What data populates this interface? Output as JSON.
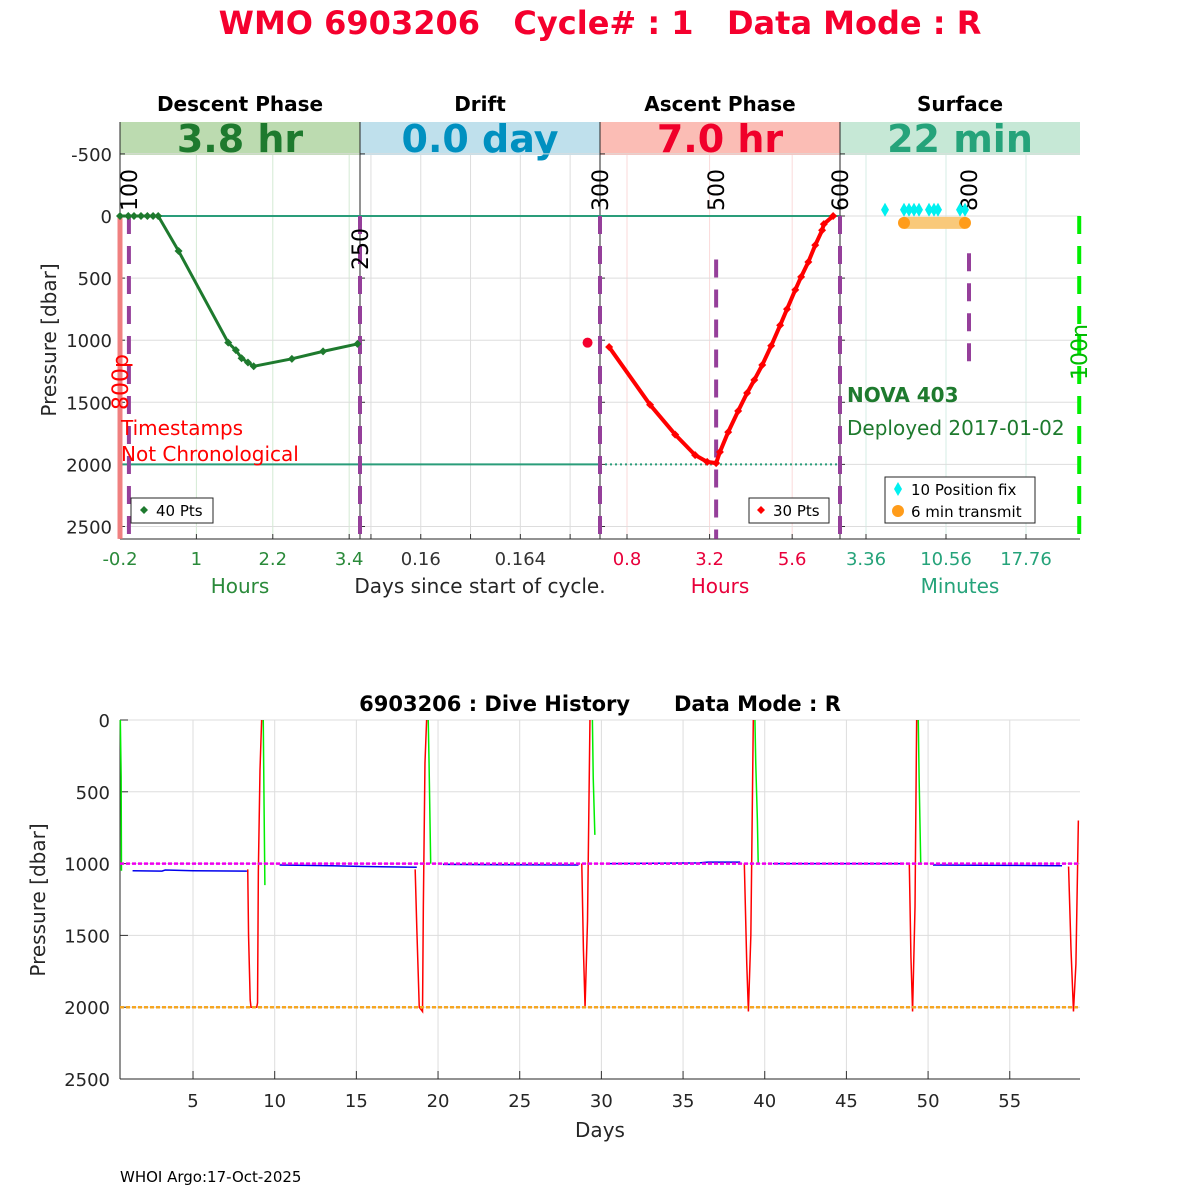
{
  "header": {
    "title": "WMO 6903206   Cycle# : 1   Data Mode : R",
    "title_color": "#f5002e"
  },
  "footer": {
    "text": "WHOI Argo:17-Oct-2025"
  },
  "chart_data": [
    {
      "type": "line",
      "ylabel": "Pressure [dbar]",
      "ylim": [
        -760,
        2600
      ],
      "y_reversed": true,
      "yticks": [
        -500,
        0,
        500,
        1000,
        1500,
        2000,
        2500
      ],
      "ytick_labels": [
        "-500",
        "0",
        "500",
        "1000",
        "1500",
        "2000",
        "2500"
      ],
      "center_xlabel": "Days since start of cycle.",
      "grid": true,
      "phases": [
        {
          "title": "Descent Phase",
          "duration": "3.8 hr",
          "xlabel": "Hours",
          "band_color": "#bcdbb0",
          "text_color": "#1e7a2e",
          "tick_color": "#2a8a3a",
          "grid_color": "#d4ead4",
          "xlim": [
            -0.2,
            3.57
          ],
          "xticks": [
            -0.2,
            1,
            2.2,
            3.4
          ],
          "xtick_labels": [
            "-0.2",
            "1",
            "2.2",
            "3.4"
          ],
          "legend": "40 Pts",
          "series_color": "#1e7a2e",
          "points": [
            [
              -0.2,
              0
            ],
            [
              -0.07,
              0
            ],
            [
              0.02,
              0
            ],
            [
              0.13,
              0
            ],
            [
              0.23,
              0
            ],
            [
              0.32,
              0
            ],
            [
              0.4,
              0
            ],
            [
              0.72,
              282
            ],
            [
              1.5,
              1020
            ],
            [
              1.62,
              1080
            ],
            [
              1.71,
              1145
            ],
            [
              1.81,
              1180
            ],
            [
              1.9,
              1210
            ],
            [
              2.5,
              1150
            ],
            [
              2.99,
              1090
            ],
            [
              3.53,
              1030
            ]
          ]
        },
        {
          "title": "Drift",
          "duration": "0.0 day",
          "xlabel": "",
          "band_color": "#bfe0ec",
          "text_color": "#0090c0",
          "tick_color": "#333333",
          "grid_color": "#dddddd",
          "xlim": [
            0.15756,
            0.1672
          ],
          "xticks": [
            0.158,
            0.16,
            0.162,
            0.164,
            0.166
          ],
          "xtick_labels": [
            "",
            "0.16",
            "",
            "0.164",
            ""
          ],
          "series_color": "#f5002e",
          "points": [
            [
              0.1667,
              1020
            ]
          ]
        },
        {
          "title": "Ascent Phase",
          "duration": "7.0 hr",
          "xlabel": "Hours",
          "band_color": "#fbbdb5",
          "text_color": "#f0002a",
          "tick_color": "#e8003a",
          "grid_color": "#fbdada",
          "xlim": [
            0.015,
            6.99
          ],
          "xticks": [
            0.8,
            3.2,
            5.6
          ],
          "xtick_labels": [
            "0.8",
            "3.2",
            "5.6"
          ],
          "legend": "30 Pts",
          "series_color": "#ff0000",
          "points": [
            [
              0.28,
              1055
            ],
            [
              1.47,
              1520
            ],
            [
              2.2,
              1760
            ],
            [
              2.78,
              1925
            ],
            [
              3.13,
              1980
            ],
            [
              3.39,
              1990
            ],
            [
              3.5,
              1900
            ],
            [
              3.74,
              1740
            ],
            [
              4.03,
              1570
            ],
            [
              4.29,
              1425
            ],
            [
              4.5,
              1320
            ],
            [
              4.73,
              1200
            ],
            [
              4.99,
              1045
            ],
            [
              5.25,
              880
            ],
            [
              5.45,
              750
            ],
            [
              5.69,
              595
            ],
            [
              5.86,
              490
            ],
            [
              6.07,
              370
            ],
            [
              6.27,
              235
            ],
            [
              6.47,
              115
            ],
            [
              6.52,
              65
            ],
            [
              6.79,
              0
            ]
          ]
        },
        {
          "title": "Surface",
          "duration": "22 min",
          "xlabel": "Minutes",
          "band_color": "#c6e8d6",
          "text_color": "#25a37a",
          "tick_color": "#25a37a",
          "grid_color": "#d6ece4",
          "xlim": [
            1.02,
            22.62
          ],
          "xticks": [
            3.36,
            10.56,
            17.76
          ],
          "xtick_labels": [
            "3.36",
            "10.56",
            "17.76"
          ],
          "legend_items": [
            {
              "label": "10 Position fix",
              "color": "#00f0f0"
            },
            {
              "label": "6 min transmit",
              "color": "#ff9c1a"
            }
          ],
          "position_fixes": [
            5.07,
            6.78,
            7.23,
            7.68,
            8.13,
            9.03,
            9.48,
            9.84,
            11.82,
            12.27
          ],
          "position_fix_pressure": -50,
          "transmit": [
            6.78,
            12.27
          ],
          "transmit_pressure": 55
        }
      ],
      "reference_lines": [
        {
          "pressure": 0,
          "color": "#2a9d7a",
          "style": "solid"
        },
        {
          "pressure": 2000,
          "color": "#2a9d7a",
          "style": "solid-then-dotted"
        }
      ],
      "markers": [
        {
          "label": "100",
          "phase": 0,
          "x": -0.06,
          "from": 0,
          "to": 2600,
          "color": "#953f9a",
          "label_color": "#000000"
        },
        {
          "label": "250",
          "phase": 0,
          "x": 3.57,
          "from": 0,
          "to": 2600,
          "color": "#953f9a",
          "label_color": "#000000"
        },
        {
          "label": "300",
          "phase": 2,
          "x": 0.015,
          "from": 0,
          "to": 2600,
          "color": "#953f9a",
          "label_color": "#000000"
        },
        {
          "label": "500",
          "phase": 2,
          "x": 3.39,
          "from": 350,
          "to": 2600,
          "color": "#953f9a",
          "label_color": "#000000"
        },
        {
          "label": "600",
          "phase": 2,
          "x": 6.99,
          "from": 0,
          "to": 2600,
          "color": "#953f9a",
          "label_color": "#000000"
        },
        {
          "label": "800",
          "phase": 3,
          "x": 12.63,
          "from": 300,
          "to": 1200,
          "color": "#953f9a",
          "label_color": "#000000"
        },
        {
          "label": "800p",
          "phase": 0,
          "x": -0.2,
          "from": 0,
          "to": 2600,
          "color": "#f08080",
          "label_color": "#ff0000"
        },
        {
          "label": "100n",
          "phase": 3,
          "x": 22.55,
          "from": 0,
          "to": 2600,
          "color": "#00ee00",
          "label_color": "#00bb00"
        }
      ],
      "annotations": {
        "warning_line1": "Timestamps",
        "warning_line2": "Not Chronological",
        "float_name": "NOVA 403",
        "deployed": "Deployed 2017-01-02"
      }
    },
    {
      "type": "line",
      "title": "6903206 : Dive History      Data Mode : R",
      "xlabel": "Days",
      "ylabel": "Pressure [dbar]",
      "xlim": [
        0.53,
        59.3
      ],
      "ylim": [
        0,
        2500
      ],
      "y_reversed": true,
      "xticks": [
        5,
        10,
        15,
        20,
        25,
        30,
        35,
        40,
        45,
        50,
        55
      ],
      "yticks": [
        0,
        500,
        1000,
        1500,
        2000,
        2500
      ],
      "grid": true,
      "reference_lines": [
        {
          "pressure": 1000,
          "color": "#ee00ee",
          "style": "dashed"
        },
        {
          "pressure": 2000,
          "color": "#f5a623",
          "style": "dashed"
        }
      ],
      "series": [
        {
          "name": "descent",
          "color": "#00ee00",
          "segments": [
            [
              [
                0.55,
                0
              ],
              [
                0.6,
                400
              ],
              [
                0.62,
                1050
              ]
            ],
            [
              [
                9.3,
                0
              ],
              [
                9.35,
                600
              ],
              [
                9.4,
                1150
              ]
            ],
            [
              [
                19.4,
                0
              ],
              [
                19.45,
                300
              ],
              [
                19.55,
                1000
              ]
            ],
            [
              [
                29.45,
                0
              ],
              [
                29.5,
                400
              ],
              [
                29.6,
                800
              ]
            ],
            [
              [
                39.4,
                0
              ],
              [
                39.45,
                300
              ],
              [
                39.55,
                700
              ],
              [
                39.6,
                1000
              ]
            ],
            [
              [
                49.4,
                0
              ],
              [
                49.45,
                400
              ],
              [
                49.55,
                1000
              ]
            ]
          ]
        },
        {
          "name": "drift",
          "color": "#0000ee",
          "segments": [
            [
              [
                1.3,
                1050
              ],
              [
                3.1,
                1052
              ],
              [
                3.3,
                1045
              ],
              [
                5.0,
                1050
              ],
              [
                8.3,
                1052
              ]
            ],
            [
              [
                10.3,
                1010
              ],
              [
                13.5,
                1015
              ],
              [
                15.5,
                1020
              ],
              [
                18.7,
                1025
              ]
            ],
            [
              [
                20.3,
                1005
              ],
              [
                24,
                1008
              ],
              [
                28.6,
                1010
              ]
            ],
            [
              [
                30.5,
                1000
              ],
              [
                36,
                995
              ],
              [
                36.5,
                990
              ],
              [
                38.5,
                990
              ]
            ],
            [
              [
                40.5,
                1000
              ],
              [
                48.5,
                1000
              ]
            ],
            [
              [
                50.3,
                1010
              ],
              [
                55,
                1012
              ],
              [
                58.2,
                1015
              ]
            ]
          ]
        },
        {
          "name": "ascent",
          "color": "#ff0000",
          "segments": [
            [
              [
                8.35,
                1040
              ],
              [
                8.4,
                1500
              ],
              [
                8.5,
                1950
              ],
              [
                8.55,
                2000
              ],
              [
                8.9,
                2000
              ],
              [
                8.95,
                1970
              ],
              [
                9.0,
                1050
              ],
              [
                9.1,
                350
              ],
              [
                9.2,
                0
              ]
            ],
            [
              [
                18.6,
                1040
              ],
              [
                18.7,
                1450
              ],
              [
                18.85,
                2000
              ],
              [
                19.05,
                2030
              ],
              [
                19.1,
                1300
              ],
              [
                19.2,
                300
              ],
              [
                19.3,
                0
              ]
            ],
            [
              [
                28.8,
                1000
              ],
              [
                28.9,
                1600
              ],
              [
                29.0,
                2000
              ],
              [
                29.15,
                1400
              ],
              [
                29.3,
                0
              ]
            ],
            [
              [
                38.75,
                1000
              ],
              [
                38.9,
                1700
              ],
              [
                39.0,
                2030
              ],
              [
                39.15,
                1500
              ],
              [
                39.3,
                0
              ]
            ],
            [
              [
                48.85,
                1000
              ],
              [
                48.95,
                1650
              ],
              [
                49.05,
                2030
              ],
              [
                49.2,
                1300
              ],
              [
                49.3,
                0
              ]
            ],
            [
              [
                58.6,
                1020
              ],
              [
                58.75,
                1600
              ],
              [
                58.9,
                2030
              ],
              [
                59.05,
                1700
              ],
              [
                59.2,
                700
              ]
            ]
          ]
        }
      ]
    }
  ]
}
